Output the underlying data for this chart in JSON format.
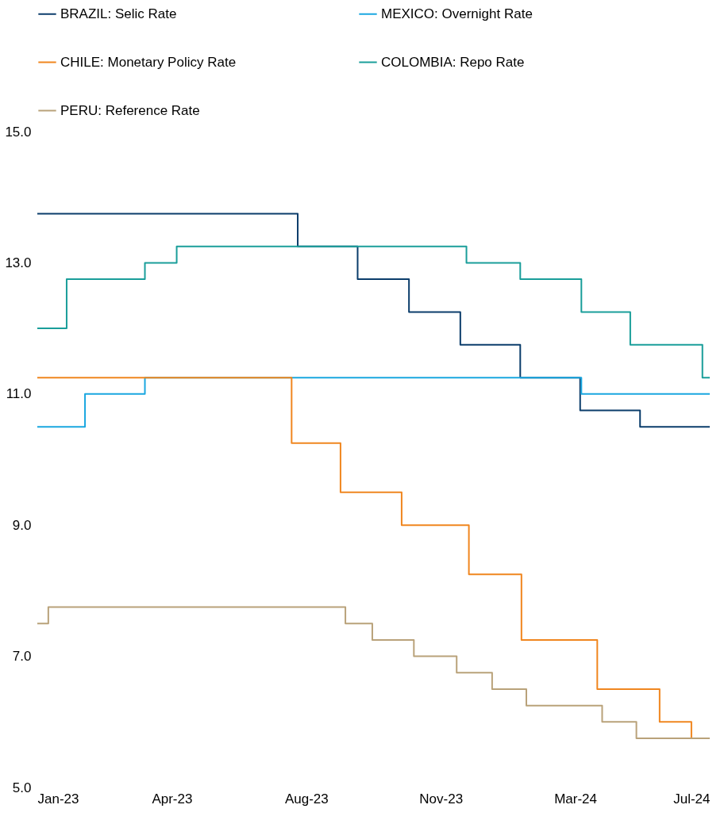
{
  "chart_data": {
    "type": "step",
    "legend": "top",
    "grid": false,
    "marker": "none",
    "line_style": "solid",
    "xlim": [
      "2023-01-01",
      "2024-07-04"
    ],
    "xticks": [
      {
        "value": "2023-01-01",
        "label": "Jan-23"
      },
      {
        "value": "2023-04-21",
        "label": "Apr-23"
      },
      {
        "value": "2023-08-09",
        "label": "Aug-23"
      },
      {
        "value": "2023-11-27",
        "label": "Nov-23"
      },
      {
        "value": "2024-03-16",
        "label": "Mar-24"
      },
      {
        "value": "2024-07-04",
        "label": "Jul-24"
      }
    ],
    "ylim": [
      5,
      15
    ],
    "yticks": [
      {
        "value": 5,
        "label": "5.0"
      },
      {
        "value": 7,
        "label": "7.0"
      },
      {
        "value": 9,
        "label": "9.0"
      },
      {
        "value": 11,
        "label": "11.0"
      },
      {
        "value": 13,
        "label": "13.0"
      },
      {
        "value": 15,
        "label": "15.0"
      }
    ],
    "series": [
      {
        "name": "BRAZIL: Selic Rate",
        "color": "#0b3d6b",
        "x": [
          "2023-01-01",
          "2023-08-02",
          "2023-09-20",
          "2023-11-01",
          "2023-12-13",
          "2024-01-31",
          "2024-03-20",
          "2024-05-08",
          "2024-07-04"
        ],
        "values": [
          13.75,
          13.25,
          12.75,
          12.25,
          11.75,
          11.25,
          10.75,
          10.5,
          10.5
        ]
      },
      {
        "name": "MEXICO: Overnight Rate",
        "color": "#1aa7e0",
        "x": [
          "2023-01-01",
          "2023-02-09",
          "2023-03-30",
          "2024-03-21",
          "2024-07-04"
        ],
        "values": [
          10.5,
          11.0,
          11.25,
          11.0,
          11.0
        ]
      },
      {
        "name": "CHILE: Monetary Policy Rate",
        "color": "#f0861f",
        "x": [
          "2023-01-01",
          "2023-07-28",
          "2023-09-06",
          "2023-10-26",
          "2023-12-20",
          "2024-02-01",
          "2024-04-03",
          "2024-05-24",
          "2024-06-19",
          "2024-07-04"
        ],
        "values": [
          11.25,
          10.25,
          9.5,
          9.0,
          8.25,
          7.25,
          6.5,
          6.0,
          5.75,
          5.75
        ]
      },
      {
        "name": "COLOMBIA: Repo Rate",
        "color": "#1a9e9a",
        "x": [
          "2023-01-01",
          "2023-01-25",
          "2023-03-30",
          "2023-04-25",
          "2023-12-18",
          "2024-01-31",
          "2024-03-21",
          "2024-04-30",
          "2024-06-28",
          "2024-07-04"
        ],
        "values": [
          12.0,
          12.75,
          13.0,
          13.25,
          13.0,
          12.75,
          12.25,
          11.75,
          11.25,
          11.25
        ]
      },
      {
        "name": "PERU: Reference Rate",
        "color": "#b9a27a",
        "x": [
          "2023-01-01",
          "2023-01-10",
          "2023-09-10",
          "2023-10-02",
          "2023-11-05",
          "2023-12-10",
          "2024-01-08",
          "2024-02-05",
          "2024-04-07",
          "2024-05-05",
          "2024-07-04"
        ],
        "values": [
          7.5,
          7.75,
          7.5,
          7.25,
          7.0,
          6.75,
          6.5,
          6.25,
          6.0,
          5.75,
          5.75
        ]
      }
    ]
  }
}
